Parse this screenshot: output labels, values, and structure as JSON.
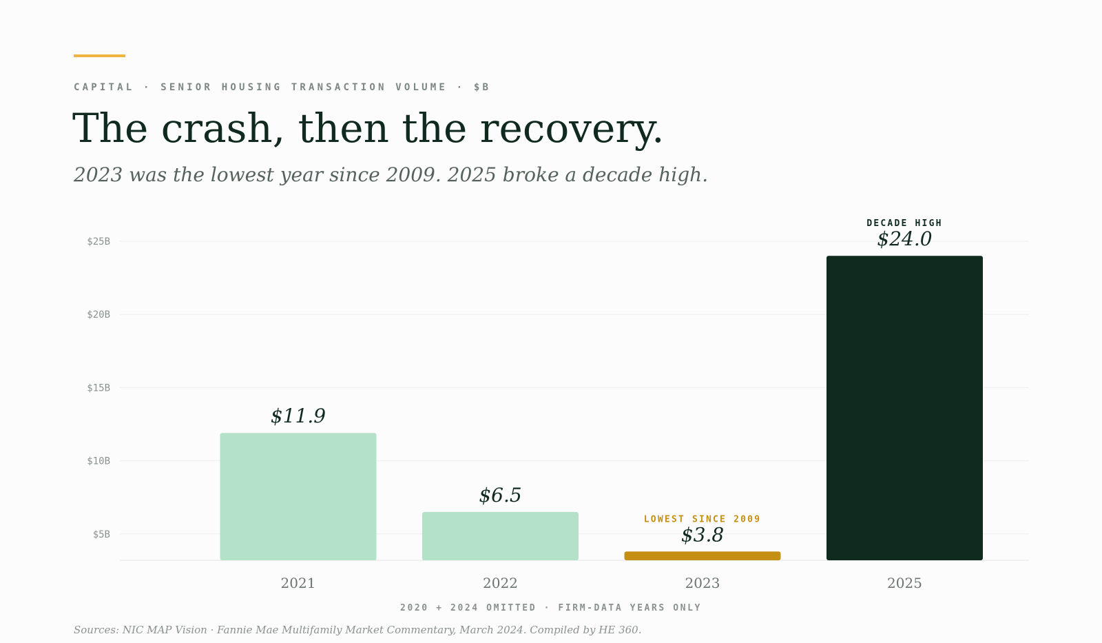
{
  "header": {
    "eyebrow": "CAPITAL · SENIOR HOUSING TRANSACTION VOLUME · $B",
    "title": "The crash, then the recovery.",
    "subtitle": "2023 was the lowest year since 2009. 2025 broke a decade high."
  },
  "chart_data": {
    "type": "bar",
    "title": "The crash, then the recovery.",
    "subtitle": "2023 was the lowest year since 2009. 2025 broke a decade high.",
    "categories": [
      "2021",
      "2022",
      "2023",
      "2025"
    ],
    "values": [
      11.9,
      6.5,
      3.8,
      24.0
    ],
    "value_labels": [
      "$11.9",
      "$6.5",
      "$3.8",
      "$24.0"
    ],
    "annotations": [
      {
        "category": "2023",
        "text": "LOWEST SINCE 2009"
      },
      {
        "category": "2025",
        "text": "DECADE HIGH"
      }
    ],
    "y_ticks": [
      5,
      10,
      15,
      20,
      25
    ],
    "y_tick_labels": [
      "$5B",
      "$10B",
      "$15B",
      "$20B",
      "$25B"
    ],
    "ylim": [
      3.2,
      25
    ],
    "grid": true,
    "xlabel": "",
    "ylabel": "",
    "colors": {
      "default": "#b3e2c8",
      "2023": "#c58f14",
      "2025": "#102a1f",
      "annotation_low": "#c58f14",
      "annotation_high": "#102a1f",
      "value_label": "#102a1f",
      "grid": "#eeeeee",
      "tick": "#8a928e",
      "category_label": "#6a736f"
    }
  },
  "footer": {
    "note": "2020 + 2024 OMITTED · FIRM-DATA YEARS ONLY",
    "sources": "Sources: NIC MAP Vision · Fannie Mae Multifamily Market Commentary, March 2024. Compiled by HE 360."
  }
}
